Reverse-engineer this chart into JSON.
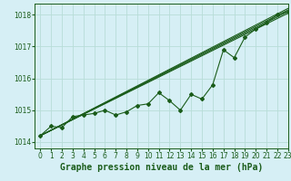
{
  "title": "Graphe pression niveau de la mer (hPa)",
  "bg_color": "#d6eff5",
  "grid_color": "#b8ddd8",
  "line_color": "#1a5c1a",
  "xlim": [
    -0.5,
    23
  ],
  "ylim": [
    1013.8,
    1018.35
  ],
  "yticks": [
    1014,
    1015,
    1016,
    1017,
    1018
  ],
  "xticks": [
    0,
    1,
    2,
    3,
    4,
    5,
    6,
    7,
    8,
    9,
    10,
    11,
    12,
    13,
    14,
    15,
    16,
    17,
    18,
    19,
    20,
    21,
    22,
    23
  ],
  "straight_lines": [
    [
      [
        0,
        23
      ],
      [
        1014.2,
        1018.05
      ]
    ],
    [
      [
        0,
        23
      ],
      [
        1014.2,
        1018.1
      ]
    ],
    [
      [
        0,
        23
      ],
      [
        1014.2,
        1018.15
      ]
    ],
    [
      [
        0,
        23
      ],
      [
        1014.2,
        1018.2
      ]
    ]
  ],
  "marker_series": [
    1014.2,
    1014.5,
    1014.45,
    1014.8,
    1014.85,
    1014.9,
    1015.0,
    1014.85,
    1014.95,
    1015.15,
    1015.2,
    1015.55,
    1015.3,
    1015.0,
    1015.5,
    1015.35,
    1015.8,
    1016.9,
    1016.65,
    1017.3,
    1017.55,
    1017.75,
    1018.0,
    1018.1
  ],
  "title_fontsize": 7,
  "tick_fontsize": 5.5
}
